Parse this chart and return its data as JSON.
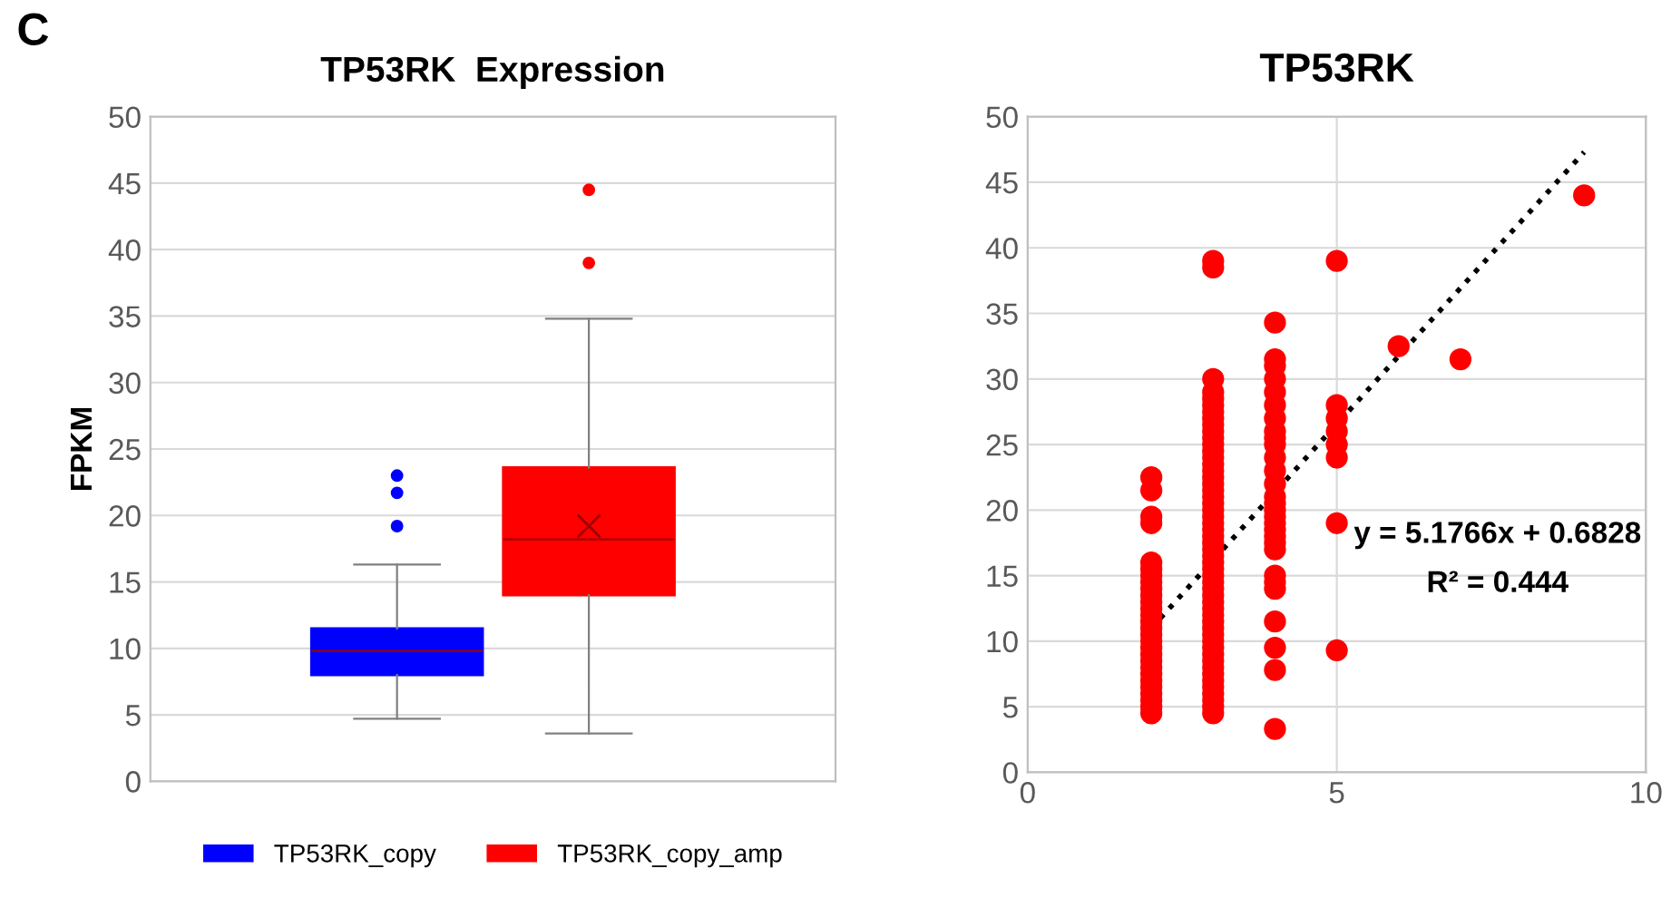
{
  "chart_data": [
    {
      "type": "box",
      "title": "TP53RK  Expression",
      "ylabel": "FPKM",
      "categories": [
        null
      ],
      "ylim": [
        0,
        50
      ],
      "yticks": [
        0,
        5,
        10,
        15,
        20,
        25,
        30,
        35,
        40,
        45,
        50
      ],
      "grid": "y",
      "legend": "bottom",
      "tick_labels": "y",
      "annotations": [
        "C"
      ],
      "series": [
        {
          "name": "TP53RK_copy",
          "color": "#0000ff",
          "boxes": [
            {
              "low": 4.7,
              "q1": 8,
              "median": 9.8,
              "q3": 11.5,
              "high": 16.3,
              "outliers": [
                19.2,
                21.7,
                23
              ]
            }
          ]
        },
        {
          "name": "TP53RK_copy_amp",
          "color": "#ff0000",
          "boxes": [
            {
              "low": 3.6,
              "q1": 14,
              "median": 18.2,
              "q3": 23.6,
              "high": 34.8,
              "mean": 19.2,
              "outliers": [
                39,
                44.5
              ]
            }
          ]
        }
      ]
    },
    {
      "type": "scatter",
      "title": "TP53RK",
      "xlim": [
        0,
        10
      ],
      "xticks": [
        0,
        5,
        10
      ],
      "ylim": [
        0,
        50
      ],
      "yticks": [
        0,
        5,
        10,
        15,
        20,
        25,
        30,
        35,
        40,
        45,
        50
      ],
      "grid": true,
      "marker": "circle",
      "annotations": [
        "y = 5.1766x + 0.6828",
        "R² = 0.444"
      ],
      "series": [
        {
          "type": "scatter",
          "color": "#ff0000",
          "x": [
            2,
            2,
            2,
            2,
            2,
            2,
            2,
            2,
            2,
            2,
            2,
            2,
            2,
            2,
            2,
            2,
            2,
            2,
            2,
            2,
            2,
            2,
            2,
            2,
            2,
            2,
            2,
            2,
            3,
            3,
            3,
            3,
            3,
            3,
            3,
            3,
            3,
            3,
            3,
            3,
            3,
            3,
            3,
            3,
            3,
            3,
            3,
            3,
            3,
            3,
            3,
            3,
            3,
            3,
            3,
            3,
            3,
            3,
            3,
            3,
            3,
            3,
            3,
            3,
            3,
            3,
            3,
            3,
            3,
            3,
            3,
            3,
            3,
            3,
            3,
            3,
            3,
            3,
            3,
            3,
            3,
            4,
            4,
            4,
            4,
            4,
            4,
            4,
            4,
            4,
            4,
            4,
            4,
            4,
            4,
            4,
            4,
            4,
            4,
            4,
            4,
            4,
            4,
            4,
            4,
            4,
            4,
            4,
            4,
            4,
            5,
            5,
            5,
            5,
            5,
            5,
            5,
            5,
            6,
            7,
            9
          ],
          "values": [
            4.5,
            5,
            5.5,
            6,
            6.5,
            7,
            7.5,
            8,
            8.5,
            9,
            9.5,
            10,
            10.5,
            11,
            11.5,
            12,
            12.5,
            13,
            13.5,
            14,
            14.5,
            15,
            15.5,
            16,
            19,
            19.5,
            21.5,
            22.5,
            4.5,
            5,
            5.5,
            6,
            6.5,
            7,
            7.5,
            8,
            8.5,
            9,
            9.5,
            10,
            10.5,
            11,
            11.5,
            12,
            12.5,
            13,
            13.5,
            14,
            14.5,
            15,
            15.5,
            16,
            16.5,
            17,
            17.5,
            18,
            18.5,
            19,
            19.5,
            20,
            20.5,
            21,
            21.5,
            22,
            22.5,
            23,
            23.5,
            24,
            24.5,
            25,
            25.5,
            26,
            26.5,
            27,
            27.5,
            28,
            28.5,
            29,
            30,
            38.5,
            39,
            3.3,
            7.8,
            9.5,
            11.5,
            14,
            14.5,
            15,
            17,
            17.5,
            18,
            18.5,
            19,
            19.5,
            20,
            20.5,
            21,
            22,
            23,
            24,
            25,
            25.5,
            26,
            27,
            28,
            29,
            30,
            31,
            31.5,
            34.3,
            9.3,
            19,
            24,
            25,
            26,
            27,
            28,
            39,
            32.5,
            31.5,
            44
          ]
        },
        {
          "type": "line",
          "color": "#000000",
          "line_style": "dotted",
          "marker": "none",
          "x": [
            2,
            9
          ],
          "values": [
            11.0,
            47.3
          ]
        }
      ]
    }
  ]
}
